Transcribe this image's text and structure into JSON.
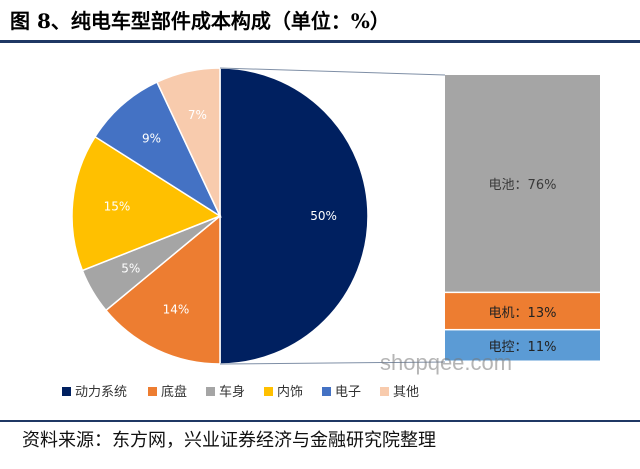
{
  "title": "图 8、纯电车型部件成本构成（单位：%）",
  "source": "资料来源：东方网，兴业证券经济与金融研究院整理",
  "watermark": "shopqee.com",
  "chart_data": {
    "type": "pie",
    "main": {
      "categories": [
        "动力系统",
        "底盘",
        "车身",
        "内饰",
        "电子",
        "其他"
      ],
      "values": [
        50,
        14,
        5,
        15,
        9,
        7
      ],
      "labels": [
        "50%",
        "14%",
        "5%",
        "15%",
        "9%",
        "7%"
      ],
      "colors": [
        "#002060",
        "#ed7d31",
        "#a5a5a5",
        "#ffc000",
        "#4472c4",
        "#f8cbad"
      ]
    },
    "breakdown": {
      "of": "动力系统",
      "categories": [
        "电池",
        "电机",
        "电控"
      ],
      "values": [
        76,
        13,
        11
      ],
      "labels": [
        "电池：76%",
        "电机：13%",
        "电控：11%"
      ],
      "colors": [
        "#a5a5a5",
        "#ed7d31",
        "#5b9bd5"
      ]
    },
    "legend": {
      "position": "bottom",
      "entries": [
        "动力系统",
        "底盘",
        "车身",
        "内饰",
        "电子",
        "其他"
      ]
    }
  }
}
